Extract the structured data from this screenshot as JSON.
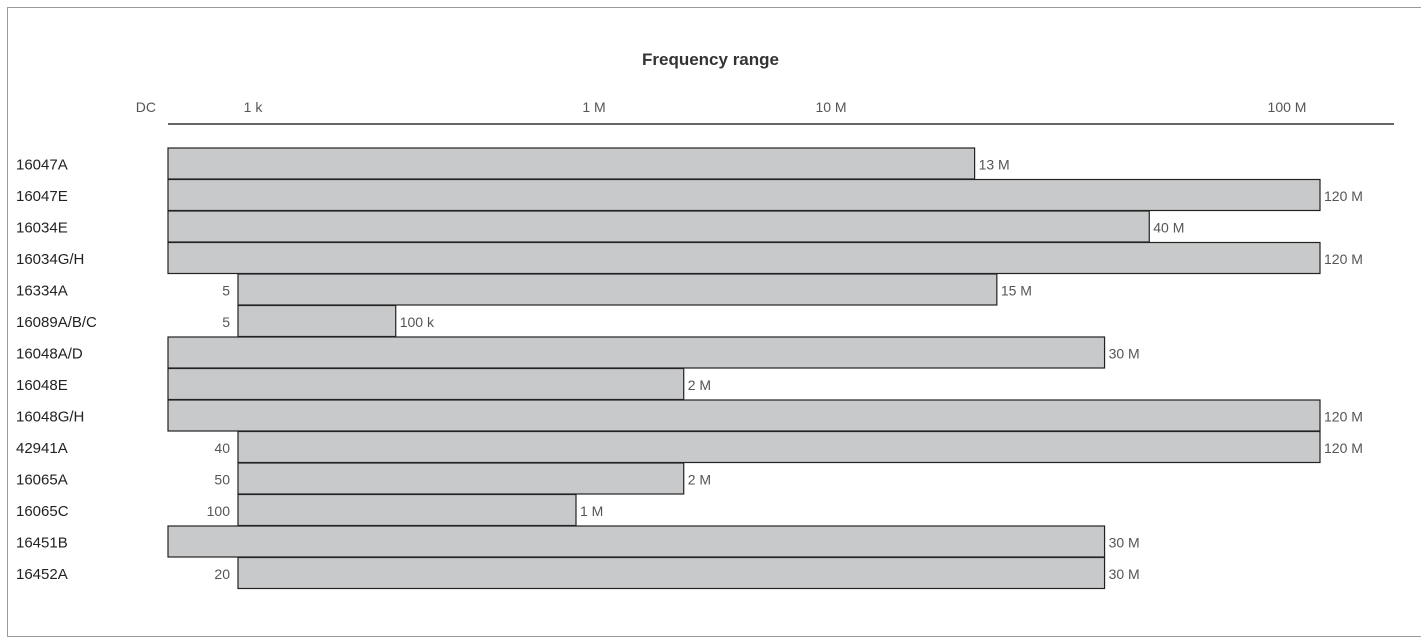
{
  "chart_data": {
    "type": "bar",
    "orientation": "horizontal-range",
    "title": "Frequency range",
    "x_scale": "log",
    "x_unit": "Hz",
    "x_ticks": [
      {
        "label": "DC",
        "value": 0
      },
      {
        "label": "1 k",
        "value": 1000
      },
      {
        "label": "1 M",
        "value": 1000000
      },
      {
        "label": "10 M",
        "value": 10000000
      },
      {
        "label": "100 M",
        "value": 100000000
      }
    ],
    "series": [
      {
        "name": "16047A",
        "start": 0,
        "start_label": "",
        "end": 13000000,
        "end_label": "13 M"
      },
      {
        "name": "16047E",
        "start": 0,
        "start_label": "",
        "end": 120000000,
        "end_label": "120 M"
      },
      {
        "name": "16034E",
        "start": 0,
        "start_label": "",
        "end": 40000000,
        "end_label": "40 M"
      },
      {
        "name": "16034G/H",
        "start": 0,
        "start_label": "",
        "end": 120000000,
        "end_label": "120 M"
      },
      {
        "name": "16334A",
        "start": 5,
        "start_label": "5",
        "end": 15000000,
        "end_label": "15 M"
      },
      {
        "name": "16089A/B/C",
        "start": 5,
        "start_label": "5",
        "end": 100000,
        "end_label": "100 k"
      },
      {
        "name": "16048A/D",
        "start": 0,
        "start_label": "",
        "end": 30000000,
        "end_label": "30 M"
      },
      {
        "name": "16048E",
        "start": 0,
        "start_label": "",
        "end": 2000000,
        "end_label": "2 M"
      },
      {
        "name": "16048G/H",
        "start": 0,
        "start_label": "",
        "end": 120000000,
        "end_label": "120 M"
      },
      {
        "name": "42941A",
        "start": 40,
        "start_label": "40",
        "end": 120000000,
        "end_label": "120 M"
      },
      {
        "name": "16065A",
        "start": 50,
        "start_label": "50",
        "end": 2000000,
        "end_label": "2 M"
      },
      {
        "name": "16065C",
        "start": 100,
        "start_label": "100",
        "end": 1000000,
        "end_label": "1 M"
      },
      {
        "name": "16451B",
        "start": 0,
        "start_label": "",
        "end": 30000000,
        "end_label": "30 M"
      },
      {
        "name": "16452A",
        "start": 20,
        "start_label": "20",
        "end": 30000000,
        "end_label": "30 M"
      }
    ],
    "grid": false,
    "legend": "none"
  }
}
